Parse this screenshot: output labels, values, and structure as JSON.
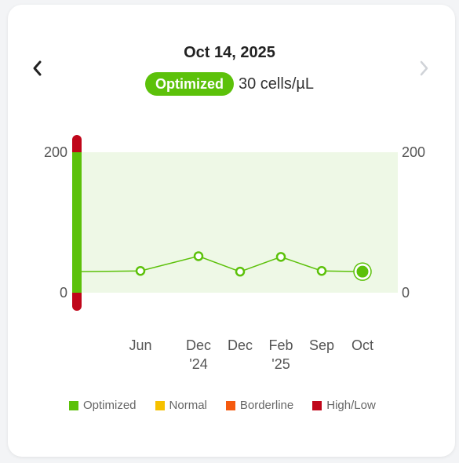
{
  "header": {
    "date": "Oct 14, 2025",
    "status_label": "Optimized",
    "value_text": "30 cells/µL",
    "prev_icon": "chevron-left-icon",
    "next_icon": "chevron-right-icon"
  },
  "colors": {
    "optimized": "#5cc10a",
    "normal": "#f6c100",
    "borderline": "#f55a0f",
    "high_low": "#c0061a",
    "band_fill": "#eef8e6",
    "line": "#5cc10a"
  },
  "chart_data": {
    "type": "line",
    "y_ticks_left": [
      "200",
      "0"
    ],
    "y_ticks_right": [
      "200",
      "0"
    ],
    "ylim": [
      0,
      200
    ],
    "optimized_range": [
      0,
      200
    ],
    "x_labels": [
      [
        "Jun"
      ],
      [
        "Dec",
        "'24"
      ],
      [
        "Dec"
      ],
      [
        "Feb",
        "'25"
      ],
      [
        "Sep"
      ],
      [
        "Oct"
      ]
    ],
    "series": [
      {
        "values": [
          30,
          31,
          52,
          30,
          51,
          31,
          30
        ]
      }
    ],
    "selected_index": 6
  },
  "legend": [
    {
      "label": "Optimized",
      "color": "#5cc10a"
    },
    {
      "label": "Normal",
      "color": "#f6c100"
    },
    {
      "label": "Borderline",
      "color": "#f55a0f"
    },
    {
      "label": "High/Low",
      "color": "#c0061a"
    }
  ]
}
